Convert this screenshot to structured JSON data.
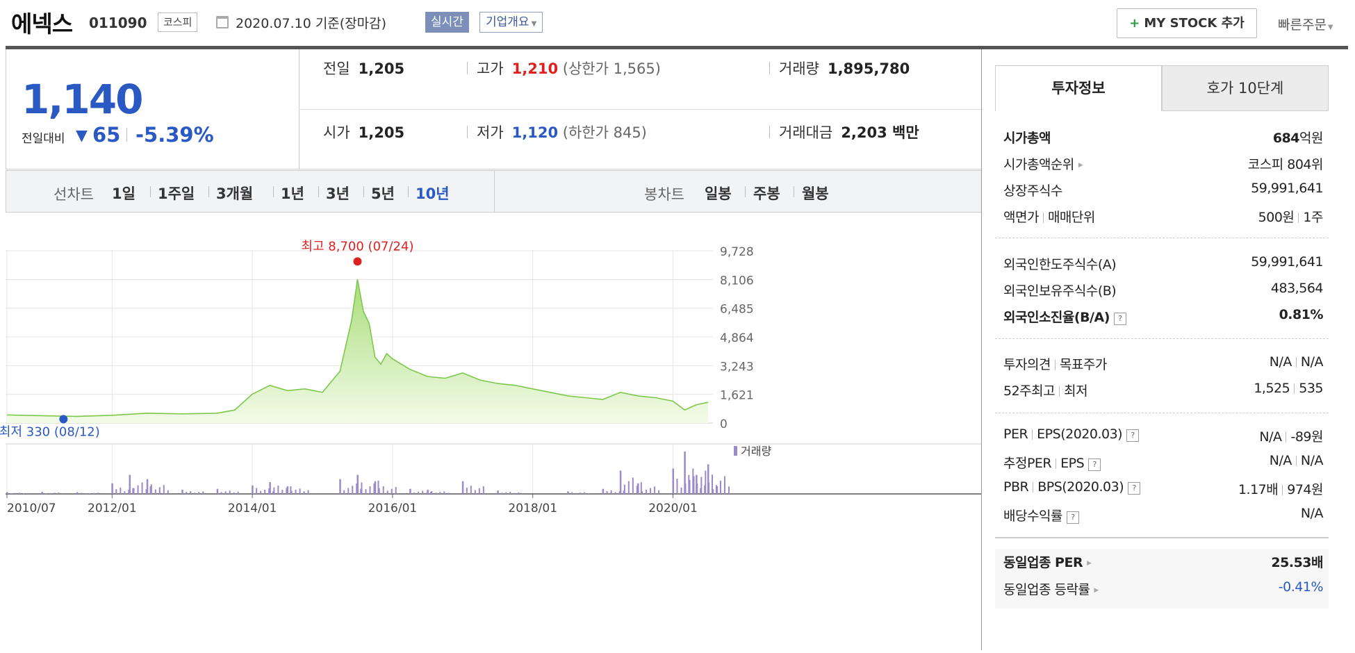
{
  "header": {
    "name": "에넥스",
    "code": "011090",
    "market": "코스피",
    "date_text": "2020.07.10 기준(장마감)",
    "realtime": "실시간",
    "overview": "기업개요",
    "mystock": "MY STOCK 추가",
    "quick_order": "빠른주문"
  },
  "quote": {
    "price": "1,140",
    "vs_label": "전일대비",
    "change_abs": "65",
    "change_pct": "-5.39%",
    "prev_close_label": "전일",
    "prev_close": "1,205",
    "high_label": "고가",
    "high": "1,210",
    "upper_limit": "(상한가 1,565)",
    "volume_label": "거래량",
    "volume": "1,895,780",
    "open_label": "시가",
    "open": "1,205",
    "low_label": "저가",
    "low": "1,120",
    "lower_limit": "(하한가 845)",
    "amount_label": "거래대금",
    "amount": "2,203 백만"
  },
  "chart_tabs": {
    "line_label": "선차트",
    "line_items": [
      "1일",
      "1주일",
      "3개월",
      "1년",
      "3년",
      "5년",
      "10년"
    ],
    "active": "10년",
    "candle_label": "봉차트",
    "candle_items": [
      "일봉",
      "주봉",
      "월봉"
    ]
  },
  "chart_data": {
    "type": "area",
    "y_ticks": [
      "9,728",
      "8,106",
      "6,485",
      "4,864",
      "3,243",
      "1,621",
      "0"
    ],
    "ylim": [
      0,
      9728
    ],
    "x_ticks": [
      "2010/07",
      "2012/01",
      "2014/01",
      "2016/01",
      "2018/01",
      "2020/01"
    ],
    "high_annotation": "최고 8,700 (07/24)",
    "low_annotation": "최저 330 (08/12)",
    "volume_legend": "거래량",
    "grid": true,
    "series": [
      {
        "x": [
          "2010/07",
          "2011/01",
          "2011/07",
          "2012/01",
          "2012/07",
          "2013/01",
          "2013/07",
          "2013/10",
          "2014/01",
          "2014/04",
          "2014/07",
          "2014/10",
          "2015/01",
          "2015/04",
          "2015/06",
          "2015/07",
          "2015/08",
          "2015/09",
          "2015/10",
          "2015/11",
          "2015/12",
          "2016/01",
          "2016/04",
          "2016/07",
          "2016/10",
          "2017/01",
          "2017/04",
          "2017/07",
          "2017/10",
          "2018/01",
          "2018/04",
          "2018/07",
          "2018/10",
          "2019/01",
          "2019/04",
          "2019/07",
          "2019/10",
          "2020/01",
          "2020/03",
          "2020/05",
          "2020/07"
        ],
        "values": [
          420,
          380,
          340,
          400,
          520,
          480,
          520,
          700,
          1600,
          2100,
          1800,
          1900,
          1700,
          2900,
          5800,
          8100,
          6300,
          5600,
          3700,
          3300,
          3900,
          3600,
          3000,
          2600,
          2500,
          2800,
          2400,
          2200,
          2100,
          1900,
          1700,
          1500,
          1400,
          1300,
          1700,
          1500,
          1400,
          1200,
          700,
          1000,
          1140
        ]
      }
    ],
    "volume": [
      {
        "x": "2010/07",
        "v": 0.04
      },
      {
        "x": "2011/01",
        "v": 0.05
      },
      {
        "x": "2011/07",
        "v": 0.04
      },
      {
        "x": "2012/01",
        "v": 0.25
      },
      {
        "x": "2012/04",
        "v": 0.45
      },
      {
        "x": "2012/07",
        "v": 0.35
      },
      {
        "x": "2013/01",
        "v": 0.1
      },
      {
        "x": "2013/07",
        "v": 0.12
      },
      {
        "x": "2014/01",
        "v": 0.2
      },
      {
        "x": "2014/04",
        "v": 0.28
      },
      {
        "x": "2014/07",
        "v": 0.18
      },
      {
        "x": "2015/04",
        "v": 0.35
      },
      {
        "x": "2015/07",
        "v": 0.45
      },
      {
        "x": "2015/10",
        "v": 0.3
      },
      {
        "x": "2016/04",
        "v": 0.12
      },
      {
        "x": "2016/07",
        "v": 0.1
      },
      {
        "x": "2017/01",
        "v": 0.3
      },
      {
        "x": "2017/07",
        "v": 0.08
      },
      {
        "x": "2018/07",
        "v": 0.06
      },
      {
        "x": "2019/01",
        "v": 0.12
      },
      {
        "x": "2019/04",
        "v": 0.55
      },
      {
        "x": "2019/07",
        "v": 0.25
      },
      {
        "x": "2020/01",
        "v": 0.6
      },
      {
        "x": "2020/03",
        "v": 1.0
      },
      {
        "x": "2020/05",
        "v": 0.45
      },
      {
        "x": "2020/07",
        "v": 0.7
      }
    ]
  },
  "panel": {
    "tab_active": "투자정보",
    "tab_other": "호가 10단계",
    "market_cap_label": "시가총액",
    "market_cap_num": "684",
    "market_cap_unit": "억원",
    "cap_rank_label": "시가총액순위",
    "cap_rank": "코스피 804위",
    "shares_label": "상장주식수",
    "shares": "59,991,641",
    "face_label": "액면가",
    "unit_label": "매매단위",
    "face": "500원",
    "unit": "1주",
    "foreign_limit_label": "외국인한도주식수(A)",
    "foreign_limit": "59,991,641",
    "foreign_hold_label": "외국인보유주식수(B)",
    "foreign_hold": "483,564",
    "foreign_ratio_label": "외국인소진율(B/A)",
    "foreign_ratio": "0.81%",
    "opinion_label": "투자의견",
    "target_label": "목표주가",
    "opinion": "N/A",
    "target": "N/A",
    "w52_label": "52주최고",
    "w52_low_label": "최저",
    "w52_high": "1,525",
    "w52_low": "535",
    "per_label": "PER",
    "eps_label": "EPS(2020.03)",
    "per": "N/A",
    "eps": "-89원",
    "est_per_label": "추정PER",
    "est_eps_label": "EPS",
    "est_per": "N/A",
    "est_eps": "N/A",
    "pbr_label": "PBR",
    "bps_label": "BPS(2020.03)",
    "pbr": "1.17배",
    "bps": "974원",
    "div_label": "배당수익률",
    "div": "N/A",
    "ind_per_label": "동일업종 PER",
    "ind_per": "25.53배",
    "ind_chg_label": "동일업종 등락률",
    "ind_chg": "-0.41%"
  }
}
